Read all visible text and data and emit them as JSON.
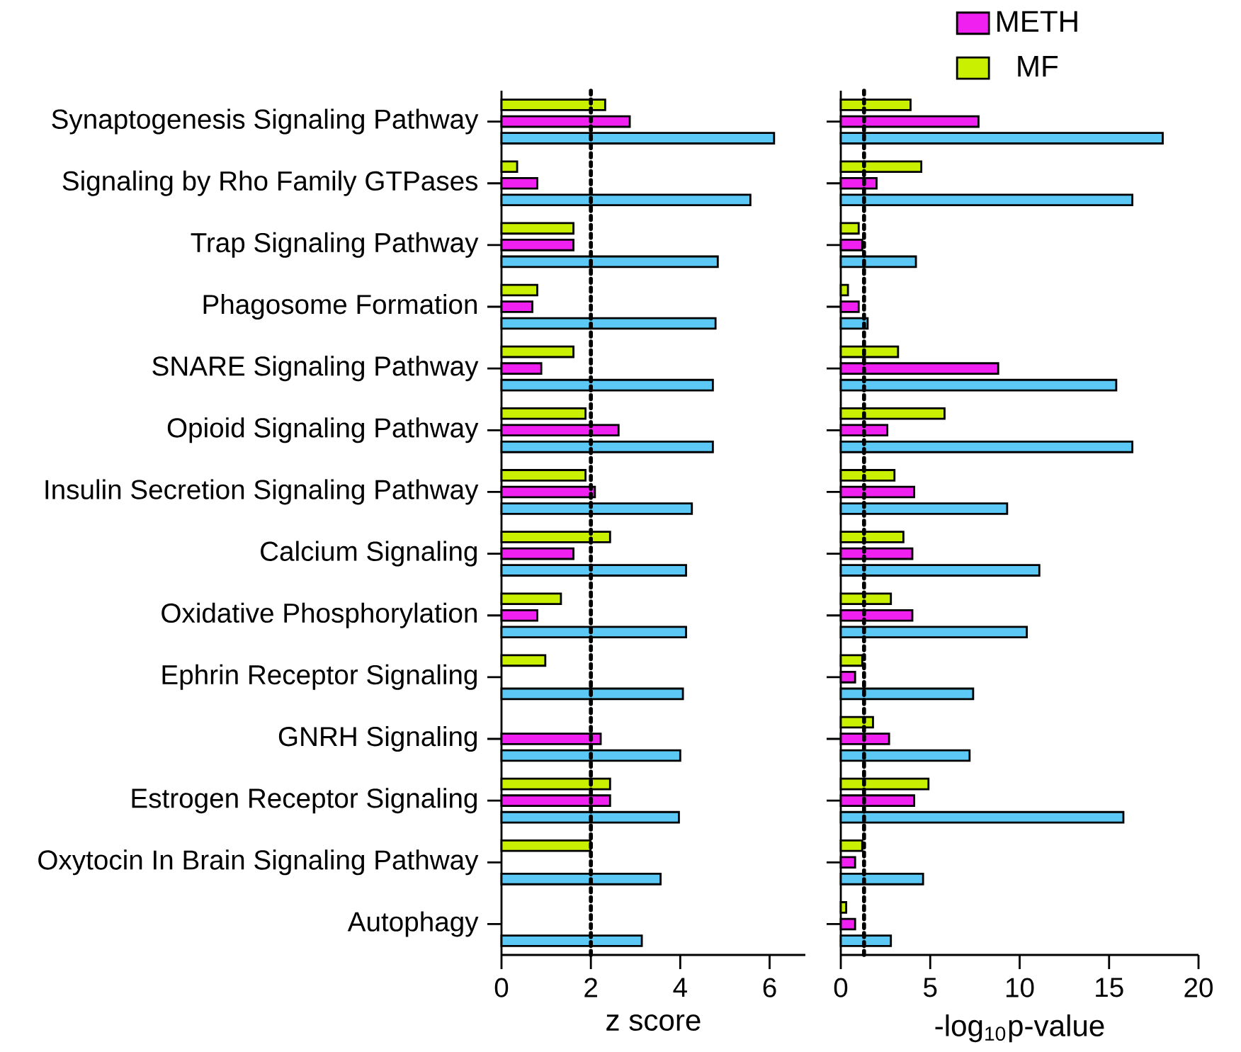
{
  "chart_data": [
    {
      "type": "bar",
      "orientation": "horizontal",
      "xlabel": "z score",
      "categories": [
        "Synaptogenesis Signaling Pathway",
        "Signaling by Rho Family GTPases",
        "Trap Signaling Pathway",
        "Phagosome Formation",
        "SNARE Signaling Pathway",
        "Opioid Signaling Pathway",
        "Insulin Secretion Signaling Pathway",
        "Calcium Signaling",
        "Oxidative Phosphorylation",
        "Ephrin Receptor Signaling",
        "GNRH Signaling",
        "Estrogen Receptor Signaling",
        "Oxytocin In Brain Signaling Pathway",
        "Autophagy"
      ],
      "series": [
        {
          "color": "#5bc8f5",
          "values": [
            6.1,
            5.57,
            4.84,
            4.79,
            4.73,
            4.73,
            4.26,
            4.13,
            4.13,
            4.06,
            4.0,
            3.97,
            3.56,
            3.14
          ]
        },
        {
          "color": "#f020f0",
          "values": [
            2.87,
            0.8,
            1.61,
            0.69,
            0.89,
            2.62,
            2.09,
            1.61,
            0.8,
            null,
            2.22,
            2.43,
            null,
            null
          ]
        },
        {
          "color": "#c8f000",
          "values": [
            2.32,
            0.35,
            1.61,
            0.8,
            1.61,
            1.88,
            1.88,
            2.43,
            1.33,
            0.98,
            null,
            2.43,
            1.99,
            null
          ]
        }
      ],
      "xlim": [
        0,
        6.8
      ],
      "xticks": [
        0,
        2,
        4,
        6
      ],
      "ref_lines": [
        {
          "axis": "x",
          "value": 2,
          "line_style": "dotted"
        }
      ]
    },
    {
      "type": "bar",
      "orientation": "horizontal",
      "xlabel": "-log$_{10}$p-value",
      "categories": [
        null,
        null,
        null,
        null,
        null,
        null,
        null,
        null,
        null,
        null,
        null,
        null,
        null,
        null
      ],
      "series": [
        {
          "color": "#5bc8f5",
          "values": [
            18.0,
            16.3,
            4.2,
            1.5,
            15.4,
            16.3,
            9.3,
            11.1,
            10.4,
            7.4,
            7.2,
            15.8,
            4.6,
            2.8
          ]
        },
        {
          "name": "METH",
          "color": "#f020f0",
          "values": [
            7.7,
            2.0,
            1.2,
            1.0,
            8.8,
            2.6,
            4.1,
            4.0,
            4.0,
            0.8,
            2.7,
            4.1,
            0.8,
            0.8
          ]
        },
        {
          "name": "MF",
          "color": "#c8f000",
          "values": [
            3.9,
            4.5,
            1.0,
            0.4,
            3.2,
            5.8,
            3.0,
            3.5,
            2.8,
            1.2,
            1.8,
            4.9,
            1.2,
            0.3
          ]
        }
      ],
      "xlim": [
        0,
        20
      ],
      "xticks": [
        0,
        5,
        10,
        15,
        20
      ],
      "ref_lines": [
        {
          "axis": "x",
          "value": 1.3,
          "line_style": "dotted"
        }
      ],
      "tick_labels": "x",
      "legend": "top"
    }
  ]
}
